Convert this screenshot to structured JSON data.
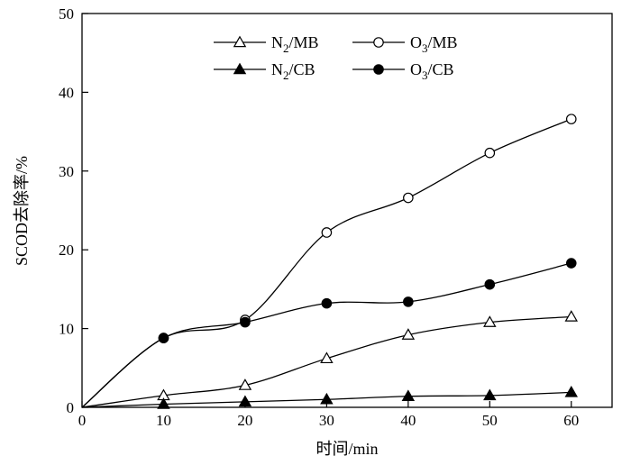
{
  "chart_data": {
    "type": "line",
    "title": "",
    "xlabel": "时间/min",
    "ylabel": "SCOD去除率/%",
    "xlim": [
      0,
      65
    ],
    "ylim": [
      0,
      50
    ],
    "xticks": [
      0,
      10,
      20,
      30,
      40,
      50,
      60
    ],
    "yticks": [
      0,
      10,
      20,
      30,
      40,
      50
    ],
    "x": [
      0,
      10,
      20,
      30,
      40,
      50,
      60
    ],
    "grid": false,
    "legend_position": "top-center",
    "series": [
      {
        "name": "N2/MB",
        "sub": "2",
        "pre": "N",
        "post": "/MB",
        "marker": "open-triangle",
        "values": [
          0,
          1.5,
          2.8,
          6.2,
          9.2,
          10.8,
          11.5
        ]
      },
      {
        "name": "O3/MB",
        "sub": "3",
        "pre": "O",
        "post": "/MB",
        "marker": "open-circle",
        "values": [
          0,
          8.8,
          11.1,
          22.2,
          26.6,
          32.3,
          36.6
        ]
      },
      {
        "name": "N2/CB",
        "sub": "2",
        "pre": "N",
        "post": "/CB",
        "marker": "filled-triangle",
        "values": [
          0,
          0.4,
          0.7,
          1.0,
          1.4,
          1.5,
          1.9
        ]
      },
      {
        "name": "O3/CB",
        "sub": "3",
        "pre": "O",
        "post": "/CB",
        "marker": "filled-circle",
        "values": [
          0,
          8.8,
          10.8,
          13.2,
          13.4,
          15.6,
          18.3
        ]
      }
    ]
  }
}
